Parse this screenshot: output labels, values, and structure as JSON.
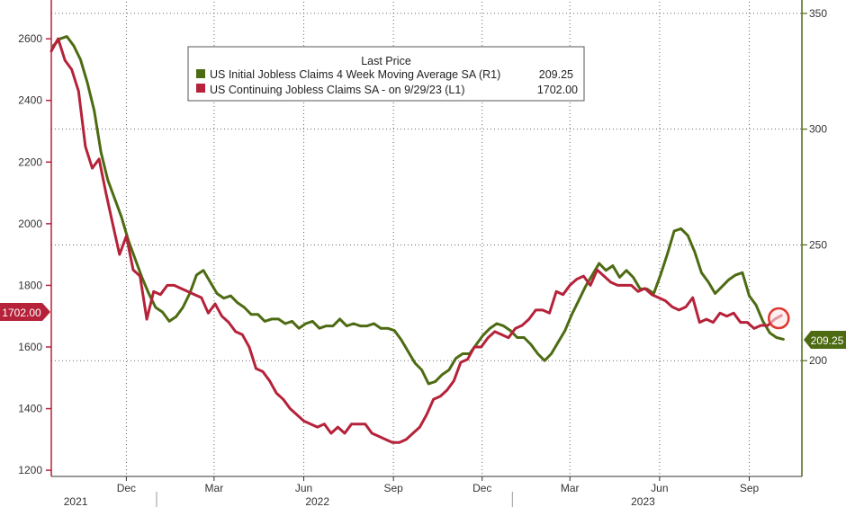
{
  "chart_data": {
    "type": "line",
    "left_axis": {
      "ylim": [
        1180,
        2720
      ],
      "ticks": [
        "1200",
        "1400",
        "1600",
        "1800",
        "2000",
        "2200",
        "2400",
        "2600"
      ],
      "tick_values": [
        1200,
        1400,
        1600,
        1800,
        2000,
        2200,
        2400,
        2600
      ],
      "color": "#b5223a"
    },
    "right_axis": {
      "ylim": [
        150,
        355
      ],
      "ticks": [
        "200",
        "250",
        "300",
        "350"
      ],
      "tick_values": [
        200,
        250,
        300,
        350
      ],
      "color": "#4d6b12"
    },
    "x_axis": {
      "months": [
        "Dec",
        "Mar",
        "Jun",
        "Sep",
        "Dec",
        "Mar",
        "Jun",
        "Sep"
      ],
      "month_dates": [
        "2021-12-01",
        "2022-03-01",
        "2022-06-01",
        "2022-09-01",
        "2022-12-01",
        "2023-03-01",
        "2023-06-01",
        "2023-09-01"
      ],
      "years": [
        "2021",
        "2022",
        "2023"
      ],
      "year_dates": [
        "2021-10-10",
        "2022-06-15",
        "2023-05-15"
      ],
      "start": "2021-09-15",
      "end": "2023-10-25"
    },
    "legend": {
      "title": "Last Price",
      "placement": "top-center",
      "entries": [
        {
          "label": "US Initial Jobless Claims 4 Week Moving Average SA  (R1)",
          "value": "209.25",
          "color": "#4d6b12"
        },
        {
          "label": "US Continuing Jobless Claims SA -  on 9/29/23  (L1)",
          "value": "1702.00",
          "color": "#b5223a"
        }
      ]
    },
    "last_value_labels": {
      "left": "1702.00",
      "right": "209.25"
    },
    "grid": "dotted",
    "series": [
      {
        "name": "US Initial Jobless Claims 4 Week Moving Average SA  (R1)",
        "axis": "right",
        "color": "#4d6b12",
        "points": [
          [
            "2021-09-17",
            336
          ],
          [
            "2021-09-24",
            339
          ],
          [
            "2021-10-01",
            340
          ],
          [
            "2021-10-08",
            336
          ],
          [
            "2021-10-15",
            330
          ],
          [
            "2021-10-22",
            320
          ],
          [
            "2021-10-29",
            308
          ],
          [
            "2021-11-05",
            290
          ],
          [
            "2021-11-12",
            278
          ],
          [
            "2021-11-19",
            270
          ],
          [
            "2021-11-26",
            262
          ],
          [
            "2021-12-03",
            252
          ],
          [
            "2021-12-10",
            244
          ],
          [
            "2021-12-17",
            236
          ],
          [
            "2021-12-24",
            229
          ],
          [
            "2021-12-31",
            223
          ],
          [
            "2022-01-07",
            221
          ],
          [
            "2022-01-14",
            217
          ],
          [
            "2022-01-21",
            219
          ],
          [
            "2022-01-28",
            223
          ],
          [
            "2022-02-04",
            229
          ],
          [
            "2022-02-11",
            237
          ],
          [
            "2022-02-18",
            239
          ],
          [
            "2022-02-25",
            234
          ],
          [
            "2022-03-04",
            229
          ],
          [
            "2022-03-11",
            227
          ],
          [
            "2022-03-18",
            228
          ],
          [
            "2022-03-25",
            225
          ],
          [
            "2022-04-01",
            223
          ],
          [
            "2022-04-08",
            220
          ],
          [
            "2022-04-15",
            220
          ],
          [
            "2022-04-22",
            217
          ],
          [
            "2022-04-29",
            218
          ],
          [
            "2022-05-06",
            218
          ],
          [
            "2022-05-13",
            216
          ],
          [
            "2022-05-20",
            217
          ],
          [
            "2022-05-27",
            214
          ],
          [
            "2022-06-03",
            216
          ],
          [
            "2022-06-10",
            217
          ],
          [
            "2022-06-17",
            214
          ],
          [
            "2022-06-24",
            215
          ],
          [
            "2022-07-01",
            215
          ],
          [
            "2022-07-08",
            218
          ],
          [
            "2022-07-15",
            215
          ],
          [
            "2022-07-22",
            216
          ],
          [
            "2022-07-29",
            215
          ],
          [
            "2022-08-05",
            215
          ],
          [
            "2022-08-12",
            216
          ],
          [
            "2022-08-19",
            214
          ],
          [
            "2022-08-26",
            214
          ],
          [
            "2022-09-02",
            213
          ],
          [
            "2022-09-09",
            209
          ],
          [
            "2022-09-16",
            204
          ],
          [
            "2022-09-23",
            199
          ],
          [
            "2022-09-30",
            196
          ],
          [
            "2022-10-07",
            190
          ],
          [
            "2022-10-14",
            191
          ],
          [
            "2022-10-21",
            194
          ],
          [
            "2022-10-28",
            196
          ],
          [
            "2022-11-04",
            201
          ],
          [
            "2022-11-11",
            203
          ],
          [
            "2022-11-18",
            203
          ],
          [
            "2022-11-25",
            207
          ],
          [
            "2022-12-02",
            211
          ],
          [
            "2022-12-09",
            214
          ],
          [
            "2022-12-16",
            216
          ],
          [
            "2022-12-23",
            215
          ],
          [
            "2022-12-30",
            213
          ],
          [
            "2023-01-06",
            210
          ],
          [
            "2023-01-13",
            210
          ],
          [
            "2023-01-20",
            207
          ],
          [
            "2023-01-27",
            203
          ],
          [
            "2023-02-03",
            200
          ],
          [
            "2023-02-10",
            203
          ],
          [
            "2023-02-17",
            208
          ],
          [
            "2023-02-24",
            213
          ],
          [
            "2023-03-03",
            220
          ],
          [
            "2023-03-10",
            226
          ],
          [
            "2023-03-17",
            232
          ],
          [
            "2023-03-24",
            237
          ],
          [
            "2023-03-31",
            242
          ],
          [
            "2023-04-07",
            239
          ],
          [
            "2023-04-14",
            241
          ],
          [
            "2023-04-21",
            236
          ],
          [
            "2023-04-28",
            239
          ],
          [
            "2023-05-05",
            236
          ],
          [
            "2023-05-12",
            231
          ],
          [
            "2023-05-19",
            231
          ],
          [
            "2023-05-26",
            229
          ],
          [
            "2023-06-02",
            237
          ],
          [
            "2023-06-09",
            246
          ],
          [
            "2023-06-16",
            256
          ],
          [
            "2023-06-23",
            257
          ],
          [
            "2023-06-30",
            254
          ],
          [
            "2023-07-07",
            247
          ],
          [
            "2023-07-14",
            238
          ],
          [
            "2023-07-21",
            234
          ],
          [
            "2023-07-28",
            229
          ],
          [
            "2023-08-04",
            232
          ],
          [
            "2023-08-11",
            235
          ],
          [
            "2023-08-18",
            237
          ],
          [
            "2023-08-25",
            238
          ],
          [
            "2023-09-01",
            228
          ],
          [
            "2023-09-08",
            224
          ],
          [
            "2023-09-15",
            217
          ],
          [
            "2023-09-22",
            212
          ],
          [
            "2023-09-29",
            210
          ],
          [
            "2023-10-06",
            209.25
          ]
        ]
      },
      {
        "name": "US Continuing Jobless Claims SA -  on 9/29/23  (L1)",
        "axis": "left",
        "color": "#b5223a",
        "points": [
          [
            "2021-09-15",
            2560
          ],
          [
            "2021-09-22",
            2600
          ],
          [
            "2021-09-29",
            2530
          ],
          [
            "2021-10-06",
            2500
          ],
          [
            "2021-10-13",
            2430
          ],
          [
            "2021-10-20",
            2250
          ],
          [
            "2021-10-27",
            2180
          ],
          [
            "2021-11-03",
            2210
          ],
          [
            "2021-11-10",
            2100
          ],
          [
            "2021-11-17",
            2000
          ],
          [
            "2021-11-24",
            1900
          ],
          [
            "2021-12-01",
            1960
          ],
          [
            "2021-12-08",
            1850
          ],
          [
            "2021-12-15",
            1830
          ],
          [
            "2021-12-22",
            1690
          ],
          [
            "2021-12-29",
            1780
          ],
          [
            "2022-01-05",
            1770
          ],
          [
            "2022-01-12",
            1800
          ],
          [
            "2022-01-19",
            1800
          ],
          [
            "2022-01-26",
            1790
          ],
          [
            "2022-02-02",
            1780
          ],
          [
            "2022-02-09",
            1770
          ],
          [
            "2022-02-16",
            1760
          ],
          [
            "2022-02-23",
            1710
          ],
          [
            "2022-03-02",
            1740
          ],
          [
            "2022-03-09",
            1700
          ],
          [
            "2022-03-16",
            1680
          ],
          [
            "2022-03-23",
            1650
          ],
          [
            "2022-03-30",
            1640
          ],
          [
            "2022-04-06",
            1600
          ],
          [
            "2022-04-13",
            1530
          ],
          [
            "2022-04-20",
            1520
          ],
          [
            "2022-04-27",
            1490
          ],
          [
            "2022-05-04",
            1450
          ],
          [
            "2022-05-11",
            1430
          ],
          [
            "2022-05-18",
            1400
          ],
          [
            "2022-05-25",
            1380
          ],
          [
            "2022-06-01",
            1360
          ],
          [
            "2022-06-08",
            1350
          ],
          [
            "2022-06-15",
            1340
          ],
          [
            "2022-06-22",
            1350
          ],
          [
            "2022-06-29",
            1320
          ],
          [
            "2022-07-06",
            1340
          ],
          [
            "2022-07-13",
            1320
          ],
          [
            "2022-07-20",
            1350
          ],
          [
            "2022-07-27",
            1350
          ],
          [
            "2022-08-03",
            1350
          ],
          [
            "2022-08-10",
            1320
          ],
          [
            "2022-08-17",
            1310
          ],
          [
            "2022-08-24",
            1300
          ],
          [
            "2022-08-31",
            1290
          ],
          [
            "2022-09-07",
            1290
          ],
          [
            "2022-09-14",
            1300
          ],
          [
            "2022-09-21",
            1320
          ],
          [
            "2022-09-28",
            1340
          ],
          [
            "2022-10-05",
            1380
          ],
          [
            "2022-10-12",
            1430
          ],
          [
            "2022-10-19",
            1440
          ],
          [
            "2022-10-26",
            1460
          ],
          [
            "2022-11-02",
            1490
          ],
          [
            "2022-11-09",
            1550
          ],
          [
            "2022-11-16",
            1560
          ],
          [
            "2022-11-23",
            1600
          ],
          [
            "2022-11-30",
            1600
          ],
          [
            "2022-12-07",
            1630
          ],
          [
            "2022-12-14",
            1650
          ],
          [
            "2022-12-21",
            1640
          ],
          [
            "2022-12-28",
            1630
          ],
          [
            "2023-01-04",
            1660
          ],
          [
            "2023-01-11",
            1670
          ],
          [
            "2023-01-18",
            1690
          ],
          [
            "2023-01-25",
            1720
          ],
          [
            "2023-02-01",
            1720
          ],
          [
            "2023-02-08",
            1710
          ],
          [
            "2023-02-15",
            1780
          ],
          [
            "2023-02-22",
            1770
          ],
          [
            "2023-03-01",
            1800
          ],
          [
            "2023-03-08",
            1820
          ],
          [
            "2023-03-15",
            1830
          ],
          [
            "2023-03-22",
            1800
          ],
          [
            "2023-03-29",
            1850
          ],
          [
            "2023-04-05",
            1830
          ],
          [
            "2023-04-12",
            1810
          ],
          [
            "2023-04-19",
            1800
          ],
          [
            "2023-04-26",
            1800
          ],
          [
            "2023-05-03",
            1800
          ],
          [
            "2023-05-10",
            1780
          ],
          [
            "2023-05-17",
            1790
          ],
          [
            "2023-05-24",
            1770
          ],
          [
            "2023-05-31",
            1760
          ],
          [
            "2023-06-07",
            1750
          ],
          [
            "2023-06-14",
            1730
          ],
          [
            "2023-06-21",
            1720
          ],
          [
            "2023-06-28",
            1730
          ],
          [
            "2023-07-05",
            1760
          ],
          [
            "2023-07-12",
            1680
          ],
          [
            "2023-07-19",
            1690
          ],
          [
            "2023-07-26",
            1680
          ],
          [
            "2023-08-02",
            1710
          ],
          [
            "2023-08-09",
            1700
          ],
          [
            "2023-08-16",
            1710
          ],
          [
            "2023-08-23",
            1680
          ],
          [
            "2023-08-30",
            1680
          ],
          [
            "2023-09-06",
            1660
          ],
          [
            "2023-09-13",
            1670
          ],
          [
            "2023-09-20",
            1670
          ],
          [
            "2023-09-27",
            1690
          ],
          [
            "2023-10-04",
            1702
          ]
        ]
      }
    ]
  }
}
